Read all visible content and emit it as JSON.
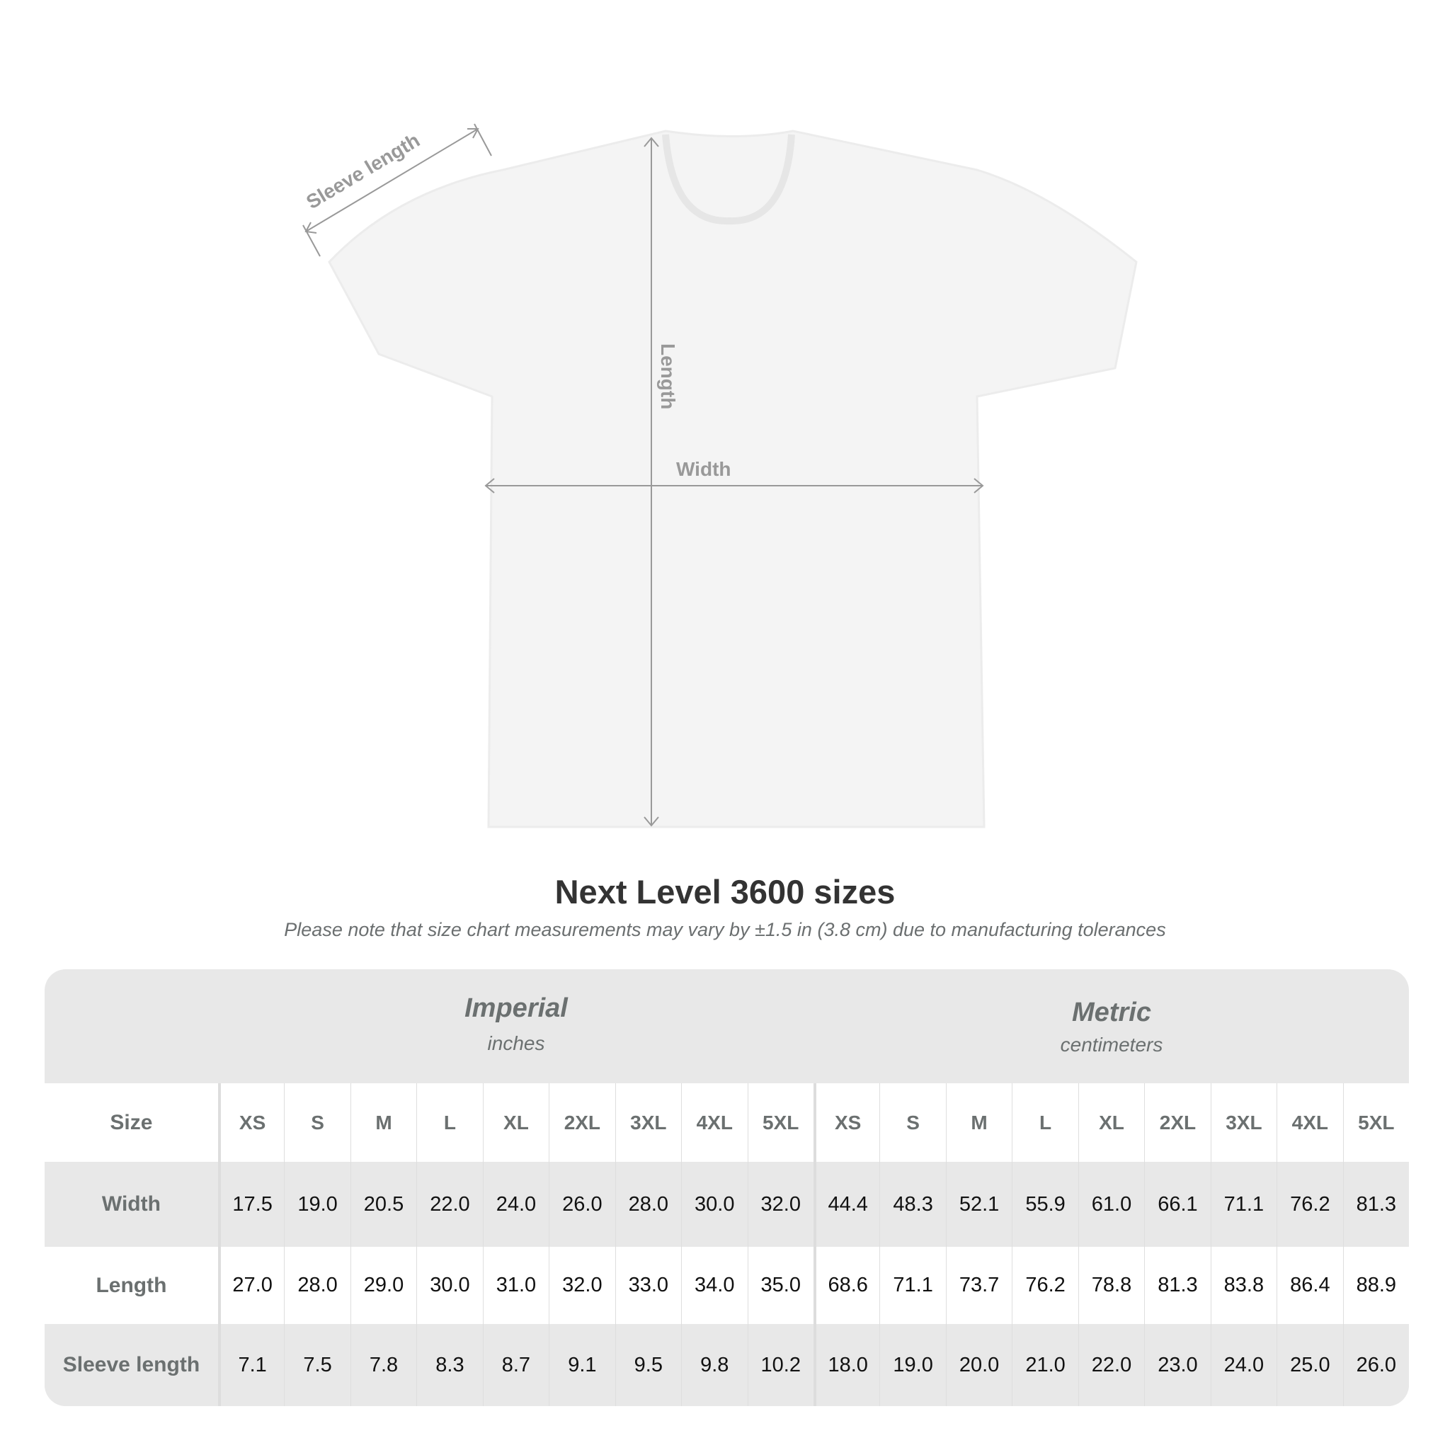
{
  "diagram": {
    "labels": {
      "sleeve": "Sleeve length",
      "length": "Length",
      "width": "Width"
    }
  },
  "title": "Next Level 3600 sizes",
  "note": "Please note that size chart measurements may vary by ±1.5 in (3.8 cm) due to manufacturing tolerances",
  "table": {
    "imperial": {
      "title": "Imperial",
      "unit": "inches"
    },
    "metric": {
      "title": "Metric",
      "unit": "centimeters"
    },
    "size_label": "Size",
    "sizes": [
      "XS",
      "S",
      "M",
      "L",
      "XL",
      "2XL",
      "3XL",
      "4XL",
      "5XL"
    ],
    "rows": [
      {
        "label": "Width",
        "imperial": [
          "17.5",
          "19.0",
          "20.5",
          "22.0",
          "24.0",
          "26.0",
          "28.0",
          "30.0",
          "32.0"
        ],
        "metric": [
          "44.4",
          "48.3",
          "52.1",
          "55.9",
          "61.0",
          "66.1",
          "71.1",
          "76.2",
          "81.3"
        ]
      },
      {
        "label": "Length",
        "imperial": [
          "27.0",
          "28.0",
          "29.0",
          "30.0",
          "31.0",
          "32.0",
          "33.0",
          "34.0",
          "35.0"
        ],
        "metric": [
          "68.6",
          "71.1",
          "73.7",
          "76.2",
          "78.8",
          "81.3",
          "83.8",
          "86.4",
          "88.9"
        ]
      },
      {
        "label": "Sleeve length",
        "imperial": [
          "7.1",
          "7.5",
          "7.8",
          "8.3",
          "8.7",
          "9.1",
          "9.5",
          "9.8",
          "10.2"
        ],
        "metric": [
          "18.0",
          "19.0",
          "20.0",
          "21.0",
          "22.0",
          "23.0",
          "24.0",
          "25.0",
          "26.0"
        ]
      }
    ]
  },
  "colors": {
    "header_bg": "#e8e8e8",
    "label_text": "#6b7070",
    "arrow": "#999999"
  }
}
